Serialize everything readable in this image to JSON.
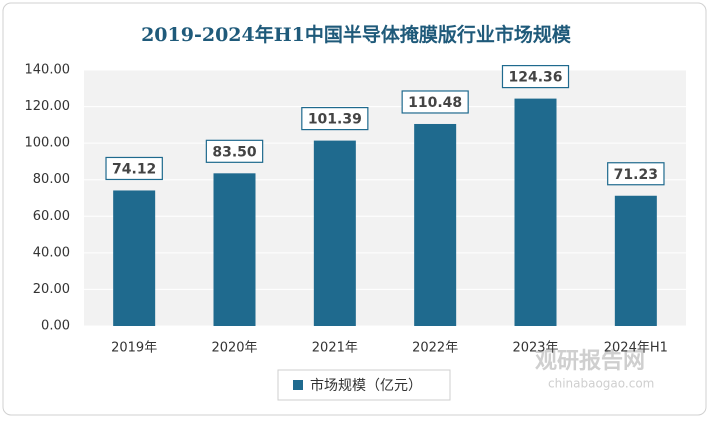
{
  "chart_data": {
    "type": "bar",
    "title": "2019-2024年H1中国半导体掩膜版行业市场规模",
    "categories": [
      "2019年",
      "2020年",
      "2021年",
      "2022年",
      "2023年",
      "2024年H1"
    ],
    "series": [
      {
        "name": "市场规模（亿元）",
        "color": "#1f6a8e",
        "values": [
          74.12,
          83.5,
          101.39,
          110.48,
          124.36,
          71.23
        ],
        "value_labels": [
          "74.12",
          "83.50",
          "101.39",
          "110.48",
          "124.36",
          "71.23"
        ]
      }
    ],
    "ylim": [
      0,
      140
    ],
    "yticks": [
      {
        "value": 0,
        "label": "0.00"
      },
      {
        "value": 20,
        "label": "20.00"
      },
      {
        "value": 40,
        "label": "40.00"
      },
      {
        "value": 60,
        "label": "60.00"
      },
      {
        "value": 80,
        "label": "80.00"
      },
      {
        "value": 100,
        "label": "100.00"
      },
      {
        "value": 120,
        "label": "120.00"
      },
      {
        "value": 140,
        "label": "140.00"
      }
    ],
    "grid": true,
    "watermark": {
      "name": "观研报告网",
      "url": "chinabaogao.com"
    }
  }
}
